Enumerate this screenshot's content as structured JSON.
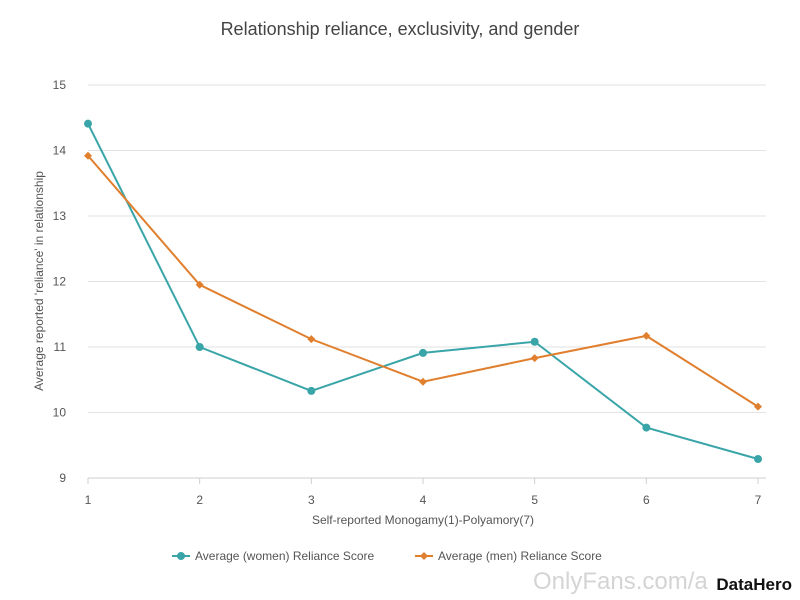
{
  "chart_data": {
    "type": "line",
    "title": "Relationship reliance, exclusivity, and gender",
    "xlabel": "Self-reported Monogamy(1)-Polyamory(7)",
    "ylabel": "Average reported 'reliance' in relationship",
    "x": [
      1,
      2,
      3,
      4,
      5,
      6,
      7
    ],
    "x_tick_labels": [
      "1",
      "2",
      "3",
      "4",
      "5",
      "6",
      "7"
    ],
    "y_tick_labels": [
      "9",
      "10",
      "11",
      "12",
      "13",
      "14",
      "15"
    ],
    "y_ticks": [
      9,
      10,
      11,
      12,
      13,
      14,
      15
    ],
    "xlim": [
      1,
      7
    ],
    "ylim": [
      9,
      15
    ],
    "grid": true,
    "legend_position": "bottom",
    "series": [
      {
        "name": "Average (women) Reliance Score",
        "color": "#3aa5a8",
        "marker": "circle",
        "values": [
          14.41,
          11.0,
          10.33,
          10.91,
          11.08,
          9.77,
          9.29
        ]
      },
      {
        "name": "Average (men) Reliance Score",
        "color": "#e07f2e",
        "marker": "diamond",
        "values": [
          13.92,
          11.95,
          11.12,
          10.47,
          10.83,
          11.17,
          10.09
        ]
      }
    ]
  },
  "watermark": "OnlyFans.com/a",
  "logo": "DataHero"
}
